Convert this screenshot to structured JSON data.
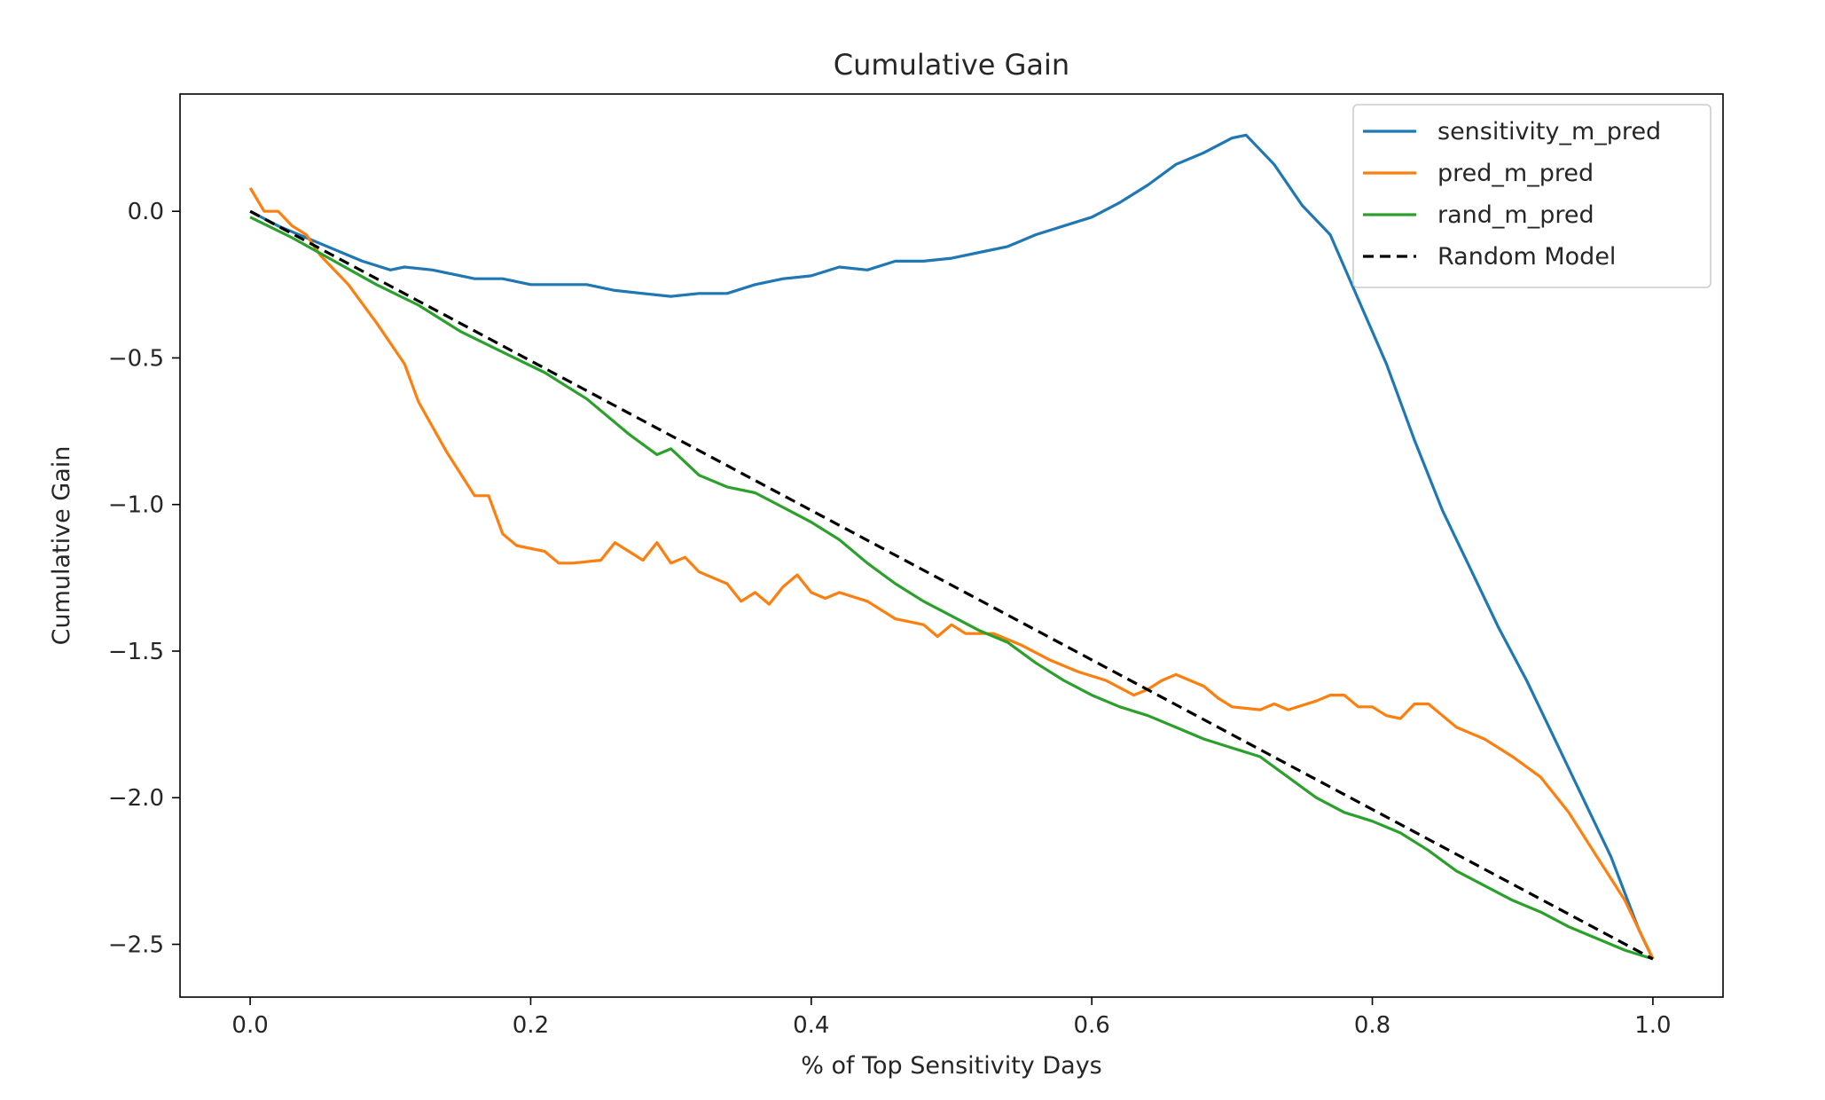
{
  "chart_data": {
    "type": "line",
    "title": "Cumulative Gain",
    "xlabel": "% of Top Sensitivity Days",
    "ylabel": "Cumulative Gain",
    "xlim": [
      -0.05,
      1.05
    ],
    "ylim": [
      -2.68,
      0.4
    ],
    "xticks": [
      0.0,
      0.2,
      0.4,
      0.6,
      0.8,
      1.0
    ],
    "xtick_labels": [
      "0.0",
      "0.2",
      "0.4",
      "0.6",
      "0.8",
      "1.0"
    ],
    "yticks": [
      0.0,
      -0.5,
      -1.0,
      -1.5,
      -2.0,
      -2.5
    ],
    "ytick_labels": [
      "0.0",
      "−0.5",
      "−1.0",
      "−1.5",
      "−2.0",
      "−2.5"
    ],
    "grid": false,
    "legend_position": "top-right",
    "series": [
      {
        "name": "sensitivity_m_pred",
        "color": "#1f77b4",
        "dash": "solid",
        "x": [
          0.0,
          0.02,
          0.04,
          0.06,
          0.08,
          0.1,
          0.11,
          0.13,
          0.16,
          0.18,
          0.2,
          0.22,
          0.24,
          0.26,
          0.28,
          0.3,
          0.32,
          0.34,
          0.36,
          0.38,
          0.4,
          0.42,
          0.44,
          0.46,
          0.48,
          0.5,
          0.52,
          0.54,
          0.56,
          0.58,
          0.6,
          0.62,
          0.64,
          0.66,
          0.68,
          0.7,
          0.71,
          0.73,
          0.75,
          0.77,
          0.79,
          0.81,
          0.83,
          0.85,
          0.87,
          0.89,
          0.91,
          0.93,
          0.95,
          0.97,
          0.99,
          1.0
        ],
        "y": [
          0.0,
          -0.05,
          -0.09,
          -0.13,
          -0.17,
          -0.2,
          -0.19,
          -0.2,
          -0.23,
          -0.23,
          -0.25,
          -0.25,
          -0.25,
          -0.27,
          -0.28,
          -0.29,
          -0.28,
          -0.28,
          -0.25,
          -0.23,
          -0.22,
          -0.19,
          -0.2,
          -0.17,
          -0.17,
          -0.16,
          -0.14,
          -0.12,
          -0.08,
          -0.05,
          -0.02,
          0.03,
          0.09,
          0.16,
          0.2,
          0.25,
          0.26,
          0.16,
          0.02,
          -0.08,
          -0.3,
          -0.52,
          -0.78,
          -1.02,
          -1.22,
          -1.42,
          -1.6,
          -1.8,
          -2.0,
          -2.2,
          -2.45,
          -2.55
        ]
      },
      {
        "name": "pred_m_pred",
        "color": "#ff7f0e",
        "dash": "solid",
        "x": [
          0.0,
          0.01,
          0.02,
          0.03,
          0.04,
          0.05,
          0.07,
          0.09,
          0.11,
          0.12,
          0.14,
          0.16,
          0.17,
          0.18,
          0.19,
          0.21,
          0.22,
          0.23,
          0.25,
          0.26,
          0.27,
          0.28,
          0.29,
          0.3,
          0.31,
          0.32,
          0.34,
          0.35,
          0.36,
          0.37,
          0.38,
          0.39,
          0.4,
          0.41,
          0.42,
          0.44,
          0.46,
          0.48,
          0.49,
          0.5,
          0.51,
          0.53,
          0.55,
          0.57,
          0.59,
          0.61,
          0.63,
          0.64,
          0.65,
          0.66,
          0.68,
          0.69,
          0.7,
          0.72,
          0.73,
          0.74,
          0.76,
          0.77,
          0.78,
          0.79,
          0.8,
          0.81,
          0.82,
          0.83,
          0.84,
          0.85,
          0.86,
          0.88,
          0.9,
          0.92,
          0.94,
          0.96,
          0.98,
          1.0
        ],
        "y": [
          0.08,
          0.0,
          0.0,
          -0.05,
          -0.08,
          -0.15,
          -0.25,
          -0.38,
          -0.52,
          -0.65,
          -0.82,
          -0.97,
          -0.97,
          -1.1,
          -1.14,
          -1.16,
          -1.2,
          -1.2,
          -1.19,
          -1.13,
          -1.16,
          -1.19,
          -1.13,
          -1.2,
          -1.18,
          -1.23,
          -1.27,
          -1.33,
          -1.3,
          -1.34,
          -1.28,
          -1.24,
          -1.3,
          -1.32,
          -1.3,
          -1.33,
          -1.39,
          -1.41,
          -1.45,
          -1.41,
          -1.44,
          -1.44,
          -1.48,
          -1.53,
          -1.57,
          -1.6,
          -1.65,
          -1.63,
          -1.6,
          -1.58,
          -1.62,
          -1.66,
          -1.69,
          -1.7,
          -1.68,
          -1.7,
          -1.67,
          -1.65,
          -1.65,
          -1.69,
          -1.69,
          -1.72,
          -1.73,
          -1.68,
          -1.68,
          -1.72,
          -1.76,
          -1.8,
          -1.86,
          -1.93,
          -2.05,
          -2.2,
          -2.35,
          -2.55
        ]
      },
      {
        "name": "rand_m_pred",
        "color": "#2ca02c",
        "dash": "solid",
        "x": [
          0.0,
          0.03,
          0.06,
          0.09,
          0.12,
          0.15,
          0.18,
          0.21,
          0.24,
          0.27,
          0.29,
          0.3,
          0.32,
          0.34,
          0.36,
          0.38,
          0.4,
          0.42,
          0.44,
          0.46,
          0.48,
          0.5,
          0.52,
          0.54,
          0.56,
          0.58,
          0.6,
          0.62,
          0.64,
          0.66,
          0.68,
          0.7,
          0.72,
          0.74,
          0.76,
          0.78,
          0.8,
          0.82,
          0.84,
          0.86,
          0.88,
          0.9,
          0.92,
          0.94,
          0.96,
          0.98,
          1.0
        ],
        "y": [
          -0.02,
          -0.09,
          -0.17,
          -0.25,
          -0.32,
          -0.41,
          -0.48,
          -0.55,
          -0.64,
          -0.76,
          -0.83,
          -0.81,
          -0.9,
          -0.94,
          -0.96,
          -1.01,
          -1.06,
          -1.12,
          -1.2,
          -1.27,
          -1.33,
          -1.38,
          -1.43,
          -1.47,
          -1.54,
          -1.6,
          -1.65,
          -1.69,
          -1.72,
          -1.76,
          -1.8,
          -1.83,
          -1.86,
          -1.93,
          -2.0,
          -2.05,
          -2.08,
          -2.12,
          -2.18,
          -2.25,
          -2.3,
          -2.35,
          -2.39,
          -2.44,
          -2.48,
          -2.52,
          -2.55
        ]
      },
      {
        "name": "Random Model",
        "color": "#000000",
        "dash": "dashed",
        "x": [
          0.0,
          1.0
        ],
        "y": [
          0.0,
          -2.55
        ]
      }
    ]
  }
}
